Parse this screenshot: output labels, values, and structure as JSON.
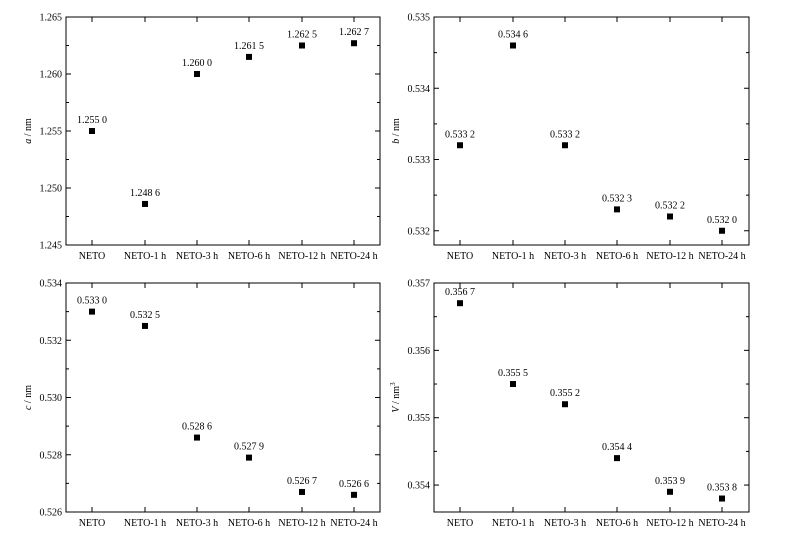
{
  "chart_data": [
    {
      "type": "scatter",
      "ylabel": "a / nm",
      "ylabel_var": "a",
      "ylabel_unit": " / nm",
      "ylabel_sup": "",
      "categories": [
        "NETO",
        "NETO-1 h",
        "NETO-3 h",
        "NETO-6 h",
        "NETO-12 h",
        "NETO-24 h"
      ],
      "values": [
        1.255,
        1.2486,
        1.26,
        1.2615,
        1.2625,
        1.2627
      ],
      "data_labels": [
        "1.255 0",
        "1.248 6",
        "1.260 0",
        "1.261 5",
        "1.262 5",
        "1.262 7"
      ],
      "ylim": [
        1.245,
        1.265
      ],
      "yticks": [
        1.245,
        1.25,
        1.255,
        1.26,
        1.265
      ],
      "ytick_labels": [
        "1.245",
        "1.250",
        "1.255",
        "1.260",
        "1.265"
      ],
      "grid": false
    },
    {
      "type": "scatter",
      "ylabel": "b / nm",
      "ylabel_var": "b",
      "ylabel_unit": " / nm",
      "ylabel_sup": "",
      "categories": [
        "NETO",
        "NETO-1 h",
        "NETO-3 h",
        "NETO-6 h",
        "NETO-12 h",
        "NETO-24 h"
      ],
      "values": [
        0.5332,
        0.5346,
        0.5332,
        0.5323,
        0.5322,
        0.532
      ],
      "data_labels": [
        "0.533 2",
        "0.534 6",
        "0.533 2",
        "0.532 3",
        "0.532 2",
        "0.532 0"
      ],
      "ylim": [
        0.5318,
        0.535
      ],
      "yticks": [
        0.532,
        0.533,
        0.534,
        0.535
      ],
      "ytick_labels": [
        "0.532",
        "0.533",
        "0.534",
        "0.535"
      ],
      "grid": false
    },
    {
      "type": "scatter",
      "ylabel": "c / nm",
      "ylabel_var": "c",
      "ylabel_unit": " / nm",
      "ylabel_sup": "",
      "categories": [
        "NETO",
        "NETO-1 h",
        "NETO-3 h",
        "NETO-6 h",
        "NETO-12 h",
        "NETO-24 h"
      ],
      "values": [
        0.533,
        0.5325,
        0.5286,
        0.5279,
        0.5267,
        0.5266
      ],
      "data_labels": [
        "0.533 0",
        "0.532 5",
        "0.528 6",
        "0.527 9",
        "0.526 7",
        "0.526 6"
      ],
      "ylim": [
        0.526,
        0.534
      ],
      "yticks": [
        0.526,
        0.528,
        0.53,
        0.532,
        0.534
      ],
      "ytick_labels": [
        "0.526",
        "0.528",
        "0.530",
        "0.532",
        "0.534"
      ],
      "grid": false
    },
    {
      "type": "scatter",
      "ylabel": "V / nm3",
      "ylabel_var": "V",
      "ylabel_unit": " / nm",
      "ylabel_sup": "3",
      "categories": [
        "NETO",
        "NETO-1 h",
        "NETO-3 h",
        "NETO-6 h",
        "NETO-12 h",
        "NETO-24 h"
      ],
      "values": [
        0.3567,
        0.3555,
        0.3552,
        0.3544,
        0.3539,
        0.3538
      ],
      "data_labels": [
        "0.356 7",
        "0.355 5",
        "0.355 2",
        "0.354 4",
        "0.353 9",
        "0.353 8"
      ],
      "ylim": [
        0.3536,
        0.357
      ],
      "yticks": [
        0.354,
        0.355,
        0.356,
        0.357
      ],
      "ytick_labels": [
        "0.354",
        "0.355",
        "0.356",
        "0.357"
      ],
      "grid": false
    }
  ]
}
